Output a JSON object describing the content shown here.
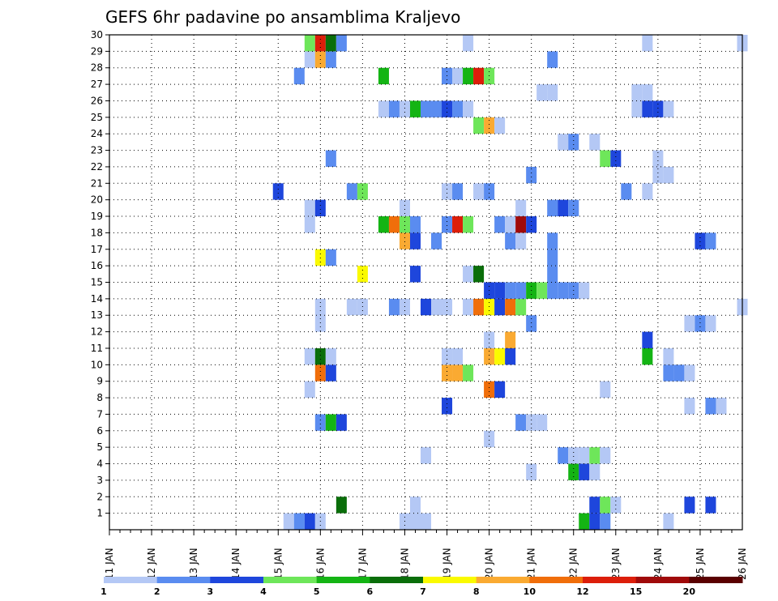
{
  "chart_data": {
    "type": "heatmap",
    "title": "GEFS 6hr padavine po ansamblima Kraljevo",
    "x_tick_labels": [
      "11 JAN",
      "12 JAN",
      "13 JAN",
      "14 JAN",
      "15 JAN",
      "16 JAN",
      "17 JAN",
      "18 JAN",
      "19 JAN",
      "20 JAN",
      "21 JAN",
      "22 JAN",
      "23 JAN",
      "24 JAN",
      "25 JAN",
      "26 JAN"
    ],
    "y_tick_labels": [
      "1",
      "2",
      "3",
      "4",
      "5",
      "6",
      "7",
      "8",
      "9",
      "10",
      "11",
      "12",
      "13",
      "14",
      "15",
      "16",
      "17",
      "18",
      "19",
      "20",
      "21",
      "22",
      "23",
      "24",
      "25",
      "26",
      "27",
      "28",
      "29",
      "30"
    ],
    "x_range_days": [
      11,
      26
    ],
    "y_range": [
      0,
      30
    ],
    "grid": true,
    "colorbar": {
      "labels": [
        "1",
        "2",
        "3",
        "4",
        "5",
        "6",
        "7",
        "8",
        "10",
        "12",
        "15",
        "20"
      ],
      "colors": [
        "#b4c8f5",
        "#5a8cf0",
        "#1e46dc",
        "#6ee65a",
        "#14b414",
        "#0a6e0a",
        "#fafa00",
        "#faaa32",
        "#f06e0a",
        "#dc1e0a",
        "#a00a0a",
        "#5a0000"
      ]
    },
    "cells": [
      {
        "day": 15.25,
        "member": 0,
        "value": 1
      },
      {
        "day": 15.5,
        "member": 0,
        "value": 2
      },
      {
        "day": 15.75,
        "member": 0,
        "value": 3
      },
      {
        "day": 16.0,
        "member": 0,
        "value": 1
      },
      {
        "day": 18.0,
        "member": 0,
        "value": 1
      },
      {
        "day": 18.25,
        "member": 0,
        "value": 1
      },
      {
        "day": 18.5,
        "member": 0,
        "value": 1
      },
      {
        "day": 22.25,
        "member": 0,
        "value": 5
      },
      {
        "day": 22.5,
        "member": 0,
        "value": 3
      },
      {
        "day": 22.75,
        "member": 0,
        "value": 2
      },
      {
        "day": 24.25,
        "member": 0,
        "value": 1
      },
      {
        "day": 16.5,
        "member": 1,
        "value": 6
      },
      {
        "day": 18.25,
        "member": 1,
        "value": 1
      },
      {
        "day": 22.5,
        "member": 1,
        "value": 3
      },
      {
        "day": 22.75,
        "member": 1,
        "value": 4
      },
      {
        "day": 23.0,
        "member": 1,
        "value": 1
      },
      {
        "day": 24.75,
        "member": 1,
        "value": 3
      },
      {
        "day": 25.25,
        "member": 1,
        "value": 3
      },
      {
        "day": 21.0,
        "member": 3,
        "value": 1
      },
      {
        "day": 22.0,
        "member": 3,
        "value": 5
      },
      {
        "day": 22.25,
        "member": 3,
        "value": 3
      },
      {
        "day": 22.5,
        "member": 3,
        "value": 1
      },
      {
        "day": 18.5,
        "member": 4,
        "value": 1
      },
      {
        "day": 21.75,
        "member": 4,
        "value": 2
      },
      {
        "day": 22.0,
        "member": 4,
        "value": 1
      },
      {
        "day": 22.25,
        "member": 4,
        "value": 1
      },
      {
        "day": 22.5,
        "member": 4,
        "value": 4
      },
      {
        "day": 22.75,
        "member": 4,
        "value": 1
      },
      {
        "day": 20.0,
        "member": 5,
        "value": 1
      },
      {
        "day": 16.0,
        "member": 6,
        "value": 2
      },
      {
        "day": 16.25,
        "member": 6,
        "value": 5
      },
      {
        "day": 16.5,
        "member": 6,
        "value": 3
      },
      {
        "day": 20.75,
        "member": 6,
        "value": 2
      },
      {
        "day": 21.0,
        "member": 6,
        "value": 1
      },
      {
        "day": 21.25,
        "member": 6,
        "value": 1
      },
      {
        "day": 19.0,
        "member": 7,
        "value": 3
      },
      {
        "day": 24.75,
        "member": 7,
        "value": 1
      },
      {
        "day": 25.25,
        "member": 7,
        "value": 2
      },
      {
        "day": 25.5,
        "member": 7,
        "value": 1
      },
      {
        "day": 15.75,
        "member": 8,
        "value": 1
      },
      {
        "day": 20.0,
        "member": 8,
        "value": 9
      },
      {
        "day": 20.25,
        "member": 8,
        "value": 3
      },
      {
        "day": 22.75,
        "member": 8,
        "value": 1
      },
      {
        "day": 16.0,
        "member": 9,
        "value": 9
      },
      {
        "day": 16.25,
        "member": 9,
        "value": 3
      },
      {
        "day": 19.0,
        "member": 9,
        "value": 8
      },
      {
        "day": 19.25,
        "member": 9,
        "value": 8
      },
      {
        "day": 19.5,
        "member": 9,
        "value": 4
      },
      {
        "day": 24.25,
        "member": 9,
        "value": 2
      },
      {
        "day": 24.5,
        "member": 9,
        "value": 2
      },
      {
        "day": 24.75,
        "member": 9,
        "value": 1
      },
      {
        "day": 15.75,
        "member": 10,
        "value": 1
      },
      {
        "day": 16.0,
        "member": 10,
        "value": 6
      },
      {
        "day": 16.25,
        "member": 10,
        "value": 1
      },
      {
        "day": 19.0,
        "member": 10,
        "value": 1
      },
      {
        "day": 19.25,
        "member": 10,
        "value": 1
      },
      {
        "day": 20.0,
        "member": 10,
        "value": 8
      },
      {
        "day": 20.25,
        "member": 10,
        "value": 7
      },
      {
        "day": 20.5,
        "member": 10,
        "value": 3
      },
      {
        "day": 23.75,
        "member": 10,
        "value": 5
      },
      {
        "day": 24.25,
        "member": 10,
        "value": 1
      },
      {
        "day": 20.0,
        "member": 11,
        "value": 1
      },
      {
        "day": 20.5,
        "member": 11,
        "value": 8
      },
      {
        "day": 23.75,
        "member": 11,
        "value": 3
      },
      {
        "day": 16.0,
        "member": 12,
        "value": 1
      },
      {
        "day": 21.0,
        "member": 12,
        "value": 2
      },
      {
        "day": 24.75,
        "member": 12,
        "value": 1
      },
      {
        "day": 25.0,
        "member": 12,
        "value": 2
      },
      {
        "day": 25.25,
        "member": 12,
        "value": 1
      },
      {
        "day": 16.0,
        "member": 13,
        "value": 1
      },
      {
        "day": 16.75,
        "member": 13,
        "value": 1
      },
      {
        "day": 17.0,
        "member": 13,
        "value": 1
      },
      {
        "day": 17.75,
        "member": 13,
        "value": 2
      },
      {
        "day": 18.0,
        "member": 13,
        "value": 1
      },
      {
        "day": 18.5,
        "member": 13,
        "value": 3
      },
      {
        "day": 18.75,
        "member": 13,
        "value": 1
      },
      {
        "day": 19.0,
        "member": 13,
        "value": 1
      },
      {
        "day": 19.5,
        "member": 13,
        "value": 1
      },
      {
        "day": 19.75,
        "member": 13,
        "value": 9
      },
      {
        "day": 20.0,
        "member": 13,
        "value": 7
      },
      {
        "day": 20.25,
        "member": 13,
        "value": 3
      },
      {
        "day": 20.5,
        "member": 13,
        "value": 9
      },
      {
        "day": 20.75,
        "member": 13,
        "value": 4
      },
      {
        "day": 26.0,
        "member": 13,
        "value": 1
      },
      {
        "day": 20.0,
        "member": 14,
        "value": 3
      },
      {
        "day": 20.25,
        "member": 14,
        "value": 3
      },
      {
        "day": 20.5,
        "member": 14,
        "value": 2
      },
      {
        "day": 20.75,
        "member": 14,
        "value": 2
      },
      {
        "day": 21.0,
        "member": 14,
        "value": 5
      },
      {
        "day": 21.25,
        "member": 14,
        "value": 4
      },
      {
        "day": 21.5,
        "member": 14,
        "value": 2
      },
      {
        "day": 21.75,
        "member": 14,
        "value": 2
      },
      {
        "day": 22.0,
        "member": 14,
        "value": 2
      },
      {
        "day": 22.25,
        "member": 14,
        "value": 1
      },
      {
        "day": 17.0,
        "member": 15,
        "value": 7
      },
      {
        "day": 18.25,
        "member": 15,
        "value": 3
      },
      {
        "day": 19.5,
        "member": 15,
        "value": 1
      },
      {
        "day": 19.75,
        "member": 15,
        "value": 6
      },
      {
        "day": 21.5,
        "member": 15,
        "value": 2
      },
      {
        "day": 16.0,
        "member": 16,
        "value": 7
      },
      {
        "day": 16.25,
        "member": 16,
        "value": 2
      },
      {
        "day": 21.5,
        "member": 16,
        "value": 2
      },
      {
        "day": 18.0,
        "member": 17,
        "value": 8
      },
      {
        "day": 18.25,
        "member": 17,
        "value": 3
      },
      {
        "day": 18.75,
        "member": 17,
        "value": 2
      },
      {
        "day": 20.5,
        "member": 17,
        "value": 2
      },
      {
        "day": 20.75,
        "member": 17,
        "value": 1
      },
      {
        "day": 21.5,
        "member": 17,
        "value": 2
      },
      {
        "day": 25.0,
        "member": 17,
        "value": 3
      },
      {
        "day": 25.25,
        "member": 17,
        "value": 2
      },
      {
        "day": 15.75,
        "member": 18,
        "value": 1
      },
      {
        "day": 17.5,
        "member": 18,
        "value": 5
      },
      {
        "day": 17.75,
        "member": 18,
        "value": 9
      },
      {
        "day": 18.0,
        "member": 18,
        "value": 4
      },
      {
        "day": 18.25,
        "member": 18,
        "value": 2
      },
      {
        "day": 19.0,
        "member": 18,
        "value": 2
      },
      {
        "day": 19.25,
        "member": 18,
        "value": 10
      },
      {
        "day": 19.5,
        "member": 18,
        "value": 4
      },
      {
        "day": 20.25,
        "member": 18,
        "value": 2
      },
      {
        "day": 20.5,
        "member": 18,
        "value": 1
      },
      {
        "day": 20.75,
        "member": 18,
        "value": 11
      },
      {
        "day": 21.0,
        "member": 18,
        "value": 3
      },
      {
        "day": 15.75,
        "member": 19,
        "value": 1
      },
      {
        "day": 16.0,
        "member": 19,
        "value": 3
      },
      {
        "day": 18.0,
        "member": 19,
        "value": 1
      },
      {
        "day": 20.75,
        "member": 19,
        "value": 1
      },
      {
        "day": 21.5,
        "member": 19,
        "value": 2
      },
      {
        "day": 21.75,
        "member": 19,
        "value": 3
      },
      {
        "day": 22.0,
        "member": 19,
        "value": 2
      },
      {
        "day": 15.0,
        "member": 20,
        "value": 3
      },
      {
        "day": 16.75,
        "member": 20,
        "value": 2
      },
      {
        "day": 17.0,
        "member": 20,
        "value": 4
      },
      {
        "day": 19.0,
        "member": 20,
        "value": 1
      },
      {
        "day": 19.25,
        "member": 20,
        "value": 2
      },
      {
        "day": 19.75,
        "member": 20,
        "value": 1
      },
      {
        "day": 20.0,
        "member": 20,
        "value": 2
      },
      {
        "day": 23.25,
        "member": 20,
        "value": 2
      },
      {
        "day": 23.75,
        "member": 20,
        "value": 1
      },
      {
        "day": 21.0,
        "member": 21,
        "value": 2
      },
      {
        "day": 24.0,
        "member": 21,
        "value": 1
      },
      {
        "day": 24.25,
        "member": 21,
        "value": 1
      },
      {
        "day": 16.25,
        "member": 22,
        "value": 2
      },
      {
        "day": 22.75,
        "member": 22,
        "value": 4
      },
      {
        "day": 23.0,
        "member": 22,
        "value": 3
      },
      {
        "day": 24.0,
        "member": 22,
        "value": 1
      },
      {
        "day": 21.75,
        "member": 23,
        "value": 1
      },
      {
        "day": 22.0,
        "member": 23,
        "value": 2
      },
      {
        "day": 22.5,
        "member": 23,
        "value": 1
      },
      {
        "day": 19.75,
        "member": 24,
        "value": 4
      },
      {
        "day": 20.0,
        "member": 24,
        "value": 8
      },
      {
        "day": 20.25,
        "member": 24,
        "value": 1
      },
      {
        "day": 17.5,
        "member": 25,
        "value": 1
      },
      {
        "day": 17.75,
        "member": 25,
        "value": 2
      },
      {
        "day": 18.0,
        "member": 25,
        "value": 1
      },
      {
        "day": 18.25,
        "member": 25,
        "value": 5
      },
      {
        "day": 18.5,
        "member": 25,
        "value": 2
      },
      {
        "day": 18.75,
        "member": 25,
        "value": 2
      },
      {
        "day": 19.0,
        "member": 25,
        "value": 3
      },
      {
        "day": 19.25,
        "member": 25,
        "value": 2
      },
      {
        "day": 19.5,
        "member": 25,
        "value": 1
      },
      {
        "day": 23.5,
        "member": 25,
        "value": 1
      },
      {
        "day": 23.75,
        "member": 25,
        "value": 3
      },
      {
        "day": 24.0,
        "member": 25,
        "value": 3
      },
      {
        "day": 24.25,
        "member": 25,
        "value": 1
      },
      {
        "day": 21.25,
        "member": 26,
        "value": 1
      },
      {
        "day": 21.5,
        "member": 26,
        "value": 1
      },
      {
        "day": 23.5,
        "member": 26,
        "value": 1
      },
      {
        "day": 23.75,
        "member": 26,
        "value": 1
      },
      {
        "day": 15.5,
        "member": 27,
        "value": 2
      },
      {
        "day": 17.5,
        "member": 27,
        "value": 5
      },
      {
        "day": 19.0,
        "member": 27,
        "value": 2
      },
      {
        "day": 19.25,
        "member": 27,
        "value": 1
      },
      {
        "day": 19.5,
        "member": 27,
        "value": 5
      },
      {
        "day": 19.75,
        "member": 27,
        "value": 10
      },
      {
        "day": 20.0,
        "member": 27,
        "value": 4
      },
      {
        "day": 15.75,
        "member": 28,
        "value": 1
      },
      {
        "day": 16.0,
        "member": 28,
        "value": 8
      },
      {
        "day": 16.25,
        "member": 28,
        "value": 2
      },
      {
        "day": 21.5,
        "member": 28,
        "value": 2
      },
      {
        "day": 15.75,
        "member": 29,
        "value": 4
      },
      {
        "day": 16.0,
        "member": 29,
        "value": 10
      },
      {
        "day": 16.25,
        "member": 29,
        "value": 6
      },
      {
        "day": 16.5,
        "member": 29,
        "value": 2
      },
      {
        "day": 19.5,
        "member": 29,
        "value": 1
      },
      {
        "day": 23.75,
        "member": 29,
        "value": 1
      },
      {
        "day": 26.0,
        "member": 29,
        "value": 1
      }
    ]
  }
}
